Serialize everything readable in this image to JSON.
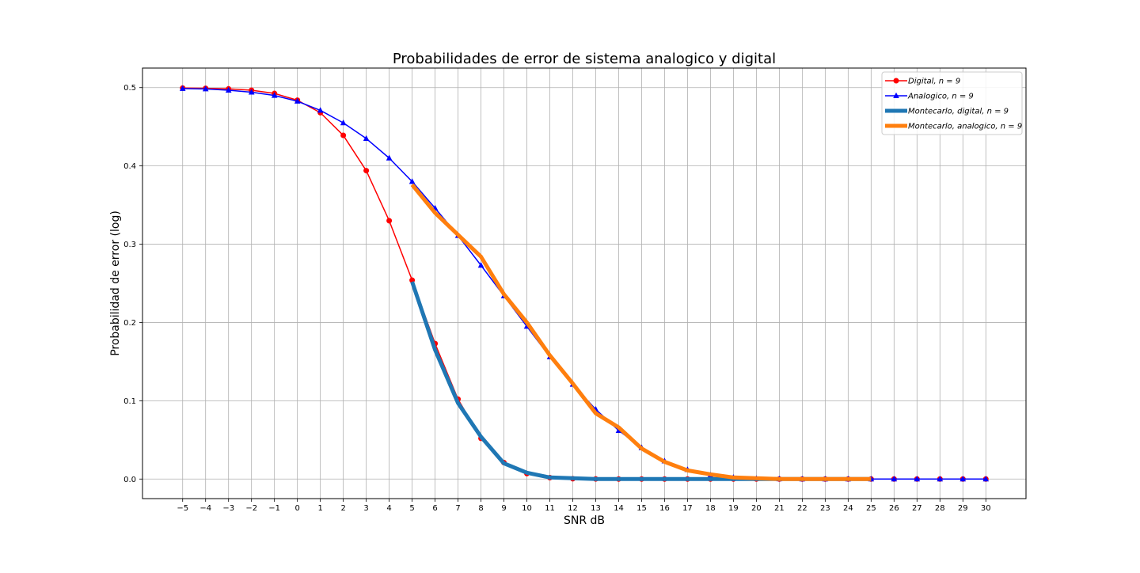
{
  "chart_data": {
    "type": "line",
    "title": "Probabilidades de error de sistema analogico y digital",
    "xlabel": "SNR dB",
    "ylabel": "Probabilidad de error (log)",
    "xlim": [
      -6.75,
      31.75
    ],
    "ylim": [
      -0.025,
      0.525
    ],
    "grid": true,
    "legend_position": "top-right",
    "x_ticks": [
      -5,
      -4,
      -3,
      -2,
      -1,
      0,
      1,
      2,
      3,
      4,
      5,
      6,
      7,
      8,
      9,
      10,
      11,
      12,
      13,
      14,
      15,
      16,
      17,
      18,
      19,
      20,
      21,
      22,
      23,
      24,
      25,
      26,
      27,
      28,
      29,
      30
    ],
    "x_tick_labels": [
      "−5",
      "−4",
      "−3",
      "−2",
      "−1",
      "0",
      "1",
      "2",
      "3",
      "4",
      "5",
      "6",
      "7",
      "8",
      "9",
      "10",
      "11",
      "12",
      "13",
      "14",
      "15",
      "16",
      "17",
      "18",
      "19",
      "20",
      "21",
      "22",
      "23",
      "24",
      "25",
      "26",
      "27",
      "28",
      "29",
      "30"
    ],
    "y_ticks": [
      0.0,
      0.1,
      0.2,
      0.3,
      0.4,
      0.5
    ],
    "y_tick_labels": [
      "0.0",
      "0.1",
      "0.2",
      "0.3",
      "0.4",
      "0.5"
    ],
    "series": [
      {
        "name": "Digital, n = 9",
        "color": "#ff0000",
        "marker": "circle",
        "line_width": "thin",
        "x": [
          -5,
          -4,
          -3,
          -2,
          -1,
          0,
          1,
          2,
          3,
          4,
          5,
          6,
          7,
          8,
          9,
          10,
          11,
          12,
          13,
          14,
          15,
          16,
          17,
          18,
          19,
          20,
          21,
          22,
          23,
          24,
          25,
          26,
          27,
          28,
          29,
          30
        ],
        "y": [
          0.4995,
          0.4991,
          0.4984,
          0.4967,
          0.4926,
          0.4839,
          0.468,
          0.439,
          0.394,
          0.33,
          0.254,
          0.173,
          0.102,
          0.052,
          0.021,
          0.007,
          0.0018,
          0.0004,
          0.0001,
          0.0,
          0.0,
          0.0,
          0.0,
          0.0,
          0.0,
          0.0,
          0.0,
          0.0,
          0.0,
          0.0,
          0.0,
          0.0,
          0.0,
          0.0,
          0.0,
          0.0
        ]
      },
      {
        "name": "Analogico, n = 9",
        "color": "#0000ff",
        "marker": "triangle",
        "line_width": "thin",
        "x": [
          -5,
          -4,
          -3,
          -2,
          -1,
          0,
          1,
          2,
          3,
          4,
          5,
          6,
          7,
          8,
          9,
          10,
          11,
          12,
          13,
          14,
          15,
          16,
          17,
          18,
          19,
          20,
          21,
          22,
          23,
          24,
          25,
          26,
          27,
          28,
          29,
          30
        ],
        "y": [
          0.4989,
          0.4983,
          0.4967,
          0.4942,
          0.49,
          0.4826,
          0.471,
          0.455,
          0.435,
          0.41,
          0.38,
          0.346,
          0.311,
          0.273,
          0.234,
          0.195,
          0.156,
          0.121,
          0.089,
          0.062,
          0.04,
          0.023,
          0.012,
          0.005,
          0.002,
          0.0006,
          0.0002,
          0.0,
          0.0,
          0.0,
          0.0,
          0.0,
          0.0,
          0.0,
          0.0,
          0.0
        ]
      },
      {
        "name": "Montecarlo, digital, n = 9",
        "color": "#1f77b4",
        "marker": "none",
        "line_width": "thick",
        "x": [
          5,
          6,
          7,
          8,
          9,
          10,
          11,
          12,
          13,
          14,
          15,
          16,
          17,
          18,
          19,
          20,
          21,
          22,
          23,
          24,
          25
        ],
        "y": [
          0.252,
          0.165,
          0.097,
          0.054,
          0.02,
          0.008,
          0.002,
          0.001,
          0.0,
          0.0,
          0.0,
          0.0,
          0.0,
          0.0,
          0.0,
          0.0,
          0.0,
          0.0,
          0.0,
          0.0,
          0.0
        ]
      },
      {
        "name": "Montecarlo, analogico, n = 9",
        "color": "#ff7f0e",
        "marker": "none",
        "line_width": "thick",
        "x": [
          5,
          6,
          7,
          8,
          9,
          10,
          11,
          12,
          13,
          14,
          15,
          16,
          17,
          18,
          19,
          20,
          21,
          22,
          23,
          24,
          25
        ],
        "y": [
          0.376,
          0.34,
          0.312,
          0.284,
          0.236,
          0.2,
          0.158,
          0.122,
          0.084,
          0.066,
          0.039,
          0.022,
          0.011,
          0.006,
          0.002,
          0.001,
          0.0,
          0.0,
          0.0,
          0.0,
          0.0
        ]
      }
    ],
    "legend": [
      {
        "label": "Digital, n = 9",
        "color": "#ff0000",
        "marker": "circle"
      },
      {
        "label": "Analogico, n = 9",
        "color": "#0000ff",
        "marker": "triangle"
      },
      {
        "label": "Montecarlo, digital, n = 9",
        "color": "#1f77b4",
        "marker": "none"
      },
      {
        "label": "Montecarlo, analogico, n = 9",
        "color": "#ff7f0e",
        "marker": "none"
      }
    ]
  }
}
